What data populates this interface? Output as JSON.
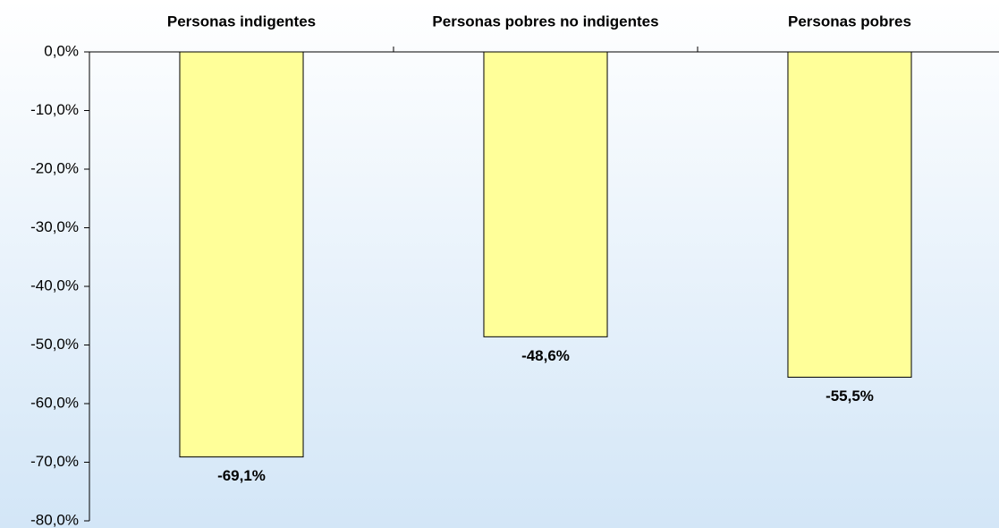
{
  "chart_data": {
    "type": "bar",
    "categories": [
      "Personas indigentes",
      "Personas pobres no indigentes",
      "Personas pobres"
    ],
    "values": [
      -69.1,
      -48.6,
      -55.5
    ],
    "value_labels": [
      "-69,1%",
      "-48,6%",
      "-55,5%"
    ],
    "color": "#ffff99",
    "ylim": [
      -80,
      0
    ],
    "yticks": [
      {
        "value": 0,
        "label": "0,0%"
      },
      {
        "value": -10,
        "label": "-10,0%"
      },
      {
        "value": -20,
        "label": "-20,0%"
      },
      {
        "value": -30,
        "label": "-30,0%"
      },
      {
        "value": -40,
        "label": "-40,0%"
      },
      {
        "value": -50,
        "label": "-50,0%"
      },
      {
        "value": -60,
        "label": "-60,0%"
      },
      {
        "value": -70,
        "label": "-70,0%"
      },
      {
        "value": -80,
        "label": "-80,0%"
      }
    ],
    "grid": false
  }
}
